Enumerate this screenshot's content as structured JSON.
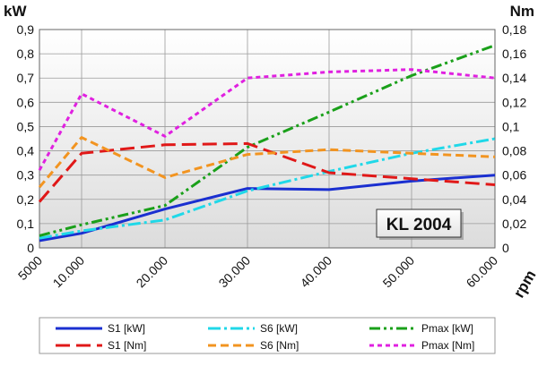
{
  "chart_data": {
    "type": "line",
    "categories": [
      "5000",
      "10.000",
      "20.000",
      "30.000",
      "40.000",
      "50.000",
      "60.000"
    ],
    "left_axis": {
      "label": "kW",
      "range": [
        0,
        0.9
      ],
      "ticks": [
        "0",
        "0,1",
        "0,2",
        "0,3",
        "0,4",
        "0,5",
        "0,6",
        "0,7",
        "0,8",
        "0,9"
      ]
    },
    "right_axis": {
      "label": "Nm",
      "range": [
        0,
        0.18
      ],
      "ticks": [
        "0",
        "0,02",
        "0,04",
        "0,06",
        "0,08",
        "0,1",
        "0,12",
        "0,14",
        "0,16",
        "0,18"
      ]
    },
    "xlabel": "rpm",
    "annotation": "KL 2004",
    "grid": true,
    "legend_position": "bottom",
    "series": [
      {
        "name": "S1 [kW]",
        "axis": "left",
        "color": "#1a2fd0",
        "dash": "solid",
        "values": [
          0.03,
          0.06,
          0.16,
          0.245,
          0.24,
          0.275,
          0.3
        ]
      },
      {
        "name": "S6 [kW]",
        "axis": "left",
        "color": "#20d8e8",
        "dash": "dashdot",
        "values": [
          0.04,
          0.07,
          0.115,
          0.235,
          0.315,
          0.39,
          0.45
        ]
      },
      {
        "name": "Pmax [kW]",
        "axis": "left",
        "color": "#1aa01a",
        "dash": "dashdotdot",
        "values": [
          0.05,
          0.095,
          0.175,
          0.415,
          0.56,
          0.71,
          0.835
        ]
      },
      {
        "name": "S1 [Nm]",
        "axis": "right",
        "color": "#e01818",
        "dash": "longdash",
        "values": [
          0.038,
          0.078,
          0.085,
          0.086,
          0.062,
          0.057,
          0.052
        ]
      },
      {
        "name": "S6 [Nm]",
        "axis": "right",
        "color": "#f29420",
        "dash": "dash",
        "values": [
          0.05,
          0.091,
          0.058,
          0.077,
          0.081,
          0.078,
          0.075
        ]
      },
      {
        "name": "Pmax [Nm]",
        "axis": "right",
        "color": "#e020e0",
        "dash": "shortdash",
        "values": [
          0.064,
          0.127,
          0.092,
          0.14,
          0.145,
          0.147,
          0.14
        ]
      }
    ]
  }
}
